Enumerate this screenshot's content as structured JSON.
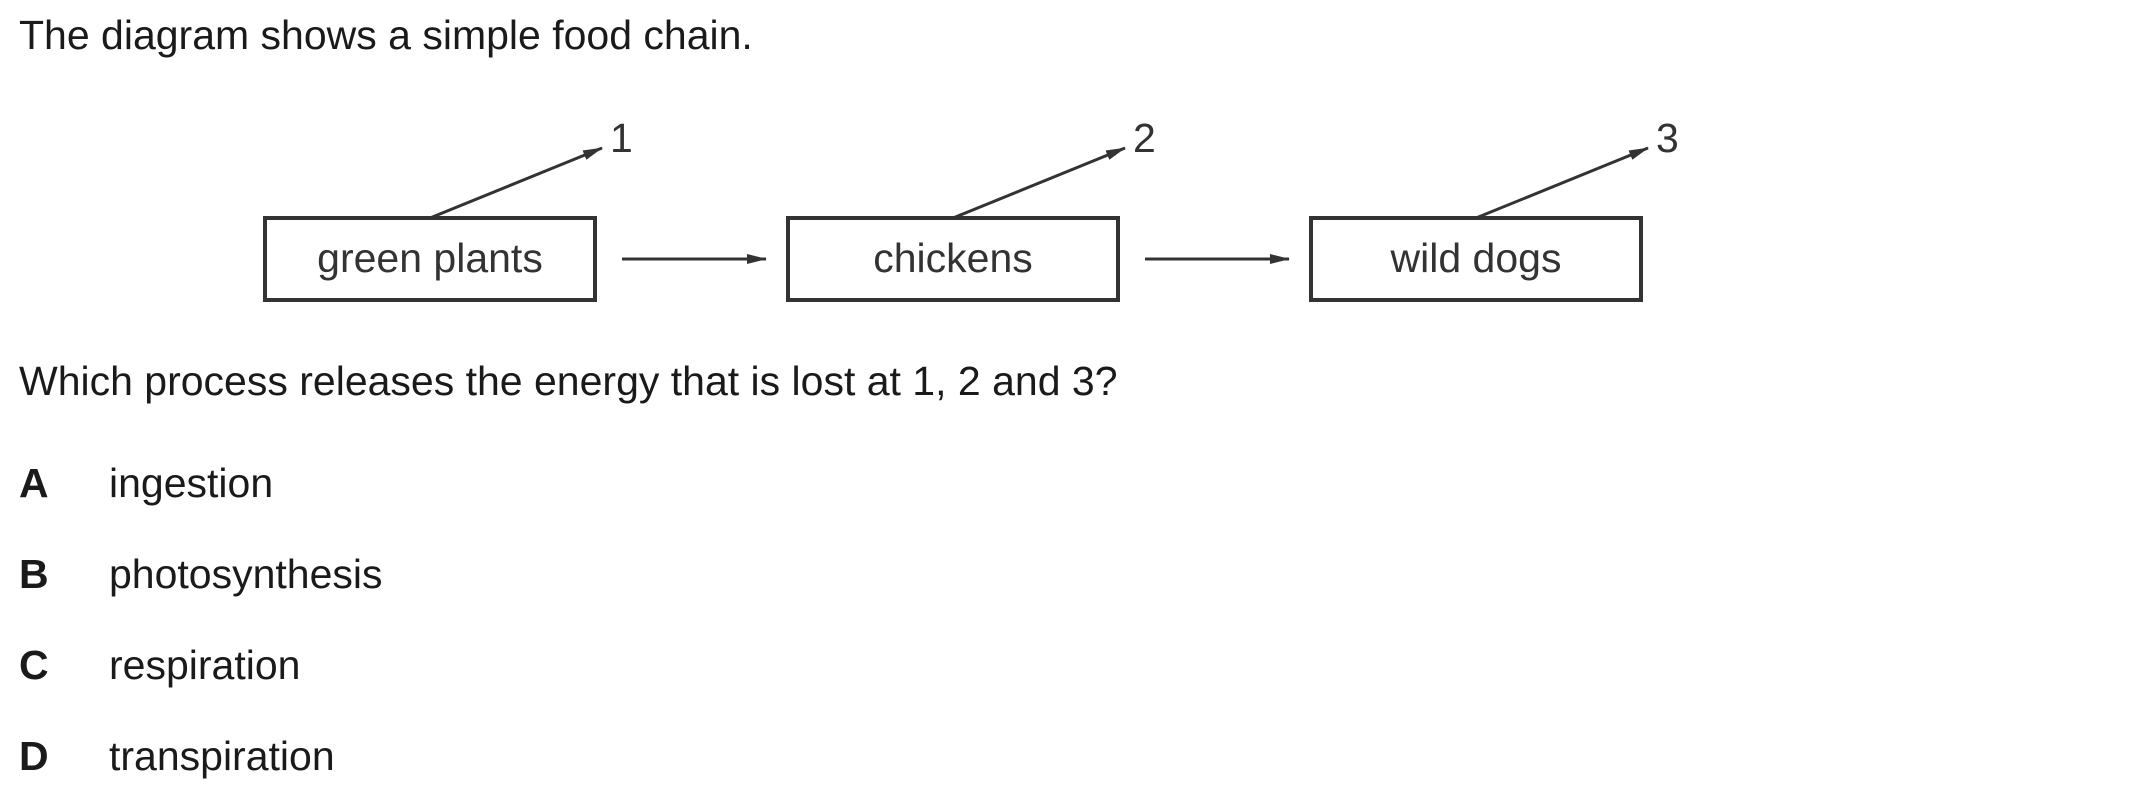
{
  "intro": "The diagram shows a simple food chain.",
  "food_chain": {
    "organisms": [
      "green plants",
      "chickens",
      "wild dogs"
    ],
    "loss_labels": [
      "1",
      "2",
      "3"
    ]
  },
  "question": "Which process releases the energy that is lost at 1, 2 and 3?",
  "options": [
    {
      "letter": "A",
      "text": "ingestion"
    },
    {
      "letter": "B",
      "text": "photosynthesis"
    },
    {
      "letter": "C",
      "text": "respiration"
    },
    {
      "letter": "D",
      "text": "transpiration"
    }
  ]
}
